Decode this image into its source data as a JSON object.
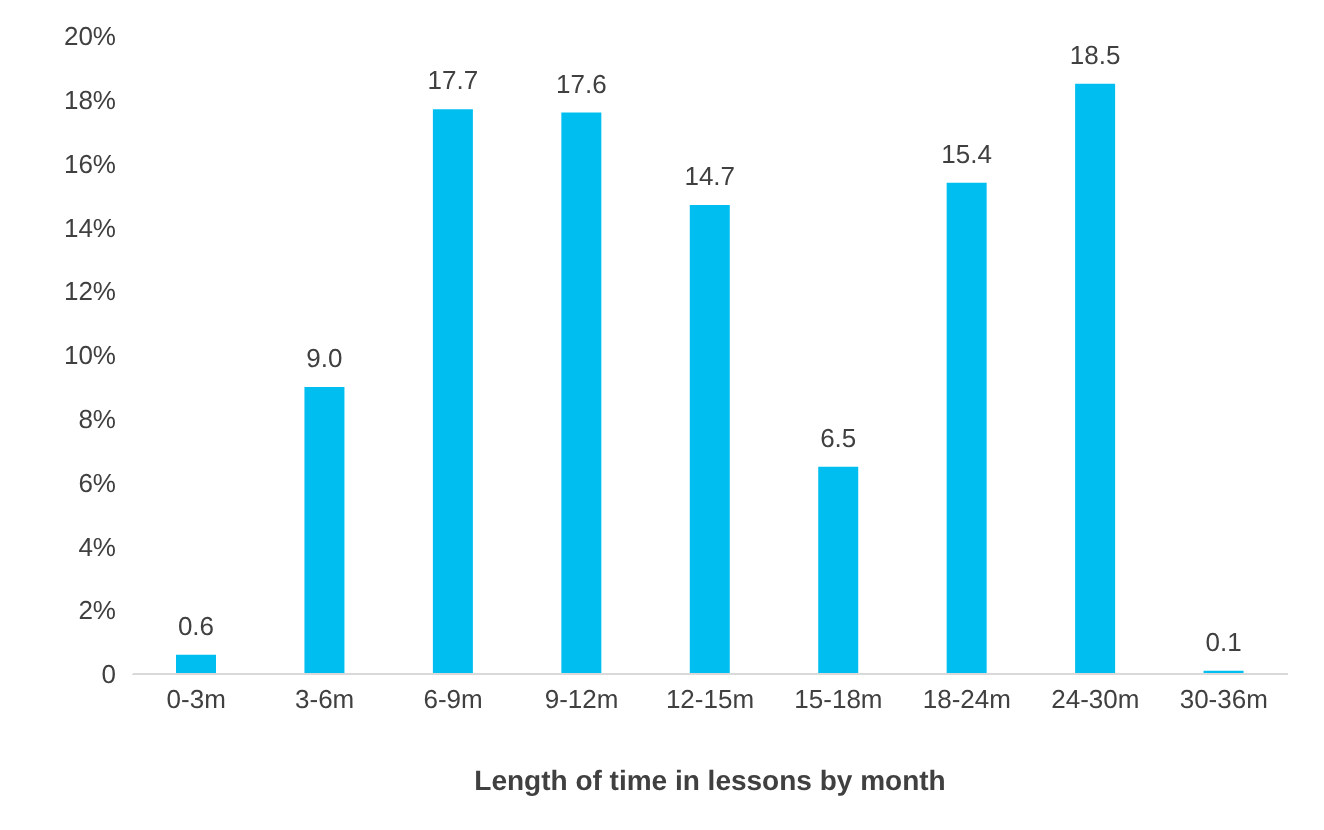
{
  "chart_data": {
    "type": "bar",
    "xlabel": "Length of time in lessons by month",
    "categories": [
      "0-3m",
      "3-6m",
      "6-9m",
      "9-12m",
      "12-15m",
      "15-18m",
      "18-24m",
      "24-30m",
      "30-36m"
    ],
    "values": [
      0.6,
      9.0,
      17.7,
      17.6,
      14.7,
      6.5,
      15.4,
      18.5,
      0.1
    ],
    "value_labels": [
      "0.6",
      "9.0",
      "17.7",
      "17.6",
      "14.7",
      "6.5",
      "15.4",
      "18.5",
      "0.1"
    ],
    "color": "#00bff0",
    "ylim": [
      0,
      20
    ],
    "yticks": [
      0,
      {
        "value": 2,
        "label": "2%"
      },
      {
        "value": 4,
        "label": "4%"
      },
      {
        "value": 6,
        "label": "6%"
      },
      {
        "value": 8,
        "label": "8%"
      },
      {
        "value": 10,
        "label": "10%"
      },
      {
        "value": 12,
        "label": "12%"
      },
      {
        "value": 14,
        "label": "14%"
      },
      {
        "value": 16,
        "label": "16%"
      },
      {
        "value": 18,
        "label": "18%"
      },
      {
        "value": 20,
        "label": "20%"
      }
    ],
    "grid": false,
    "legend": false
  }
}
